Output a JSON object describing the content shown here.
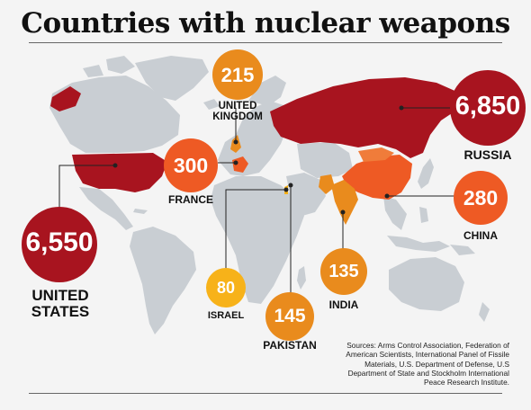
{
  "title": "Countries with nuclear weapons",
  "sources": "Sources: Arms Control Association, Federation of American Scientists, International Panel of Fissile Materials, U.S. Department of Defense, U.S Department of State and Stockholm International Peace Research Institute.",
  "colors": {
    "dark_red": "#a8141f",
    "red_orange": "#ee5a24",
    "orange": "#e98b1d",
    "yellow": "#f7b219",
    "land": "#c9ced3",
    "background": "#f4f4f4"
  },
  "chart_data": {
    "type": "bubble-map",
    "title": "Countries with nuclear weapons",
    "unit": "warheads",
    "countries": [
      {
        "name": "UNITED STATES",
        "value": 6550,
        "display": "6,550",
        "color": "#a8141f"
      },
      {
        "name": "RUSSIA",
        "value": 6850,
        "display": "6,850",
        "color": "#a8141f"
      },
      {
        "name": "FRANCE",
        "value": 300,
        "display": "300",
        "color": "#ee5a24"
      },
      {
        "name": "CHINA",
        "value": 280,
        "display": "280",
        "color": "#ee5a24"
      },
      {
        "name": "UNITED KINGDOM",
        "value": 215,
        "display": "215",
        "color": "#e98b1d"
      },
      {
        "name": "PAKISTAN",
        "value": 145,
        "display": "145",
        "color": "#e98b1d"
      },
      {
        "name": "INDIA",
        "value": 135,
        "display": "135",
        "color": "#e98b1d"
      },
      {
        "name": "ISRAEL",
        "value": 80,
        "display": "80",
        "color": "#f7b219"
      }
    ]
  }
}
